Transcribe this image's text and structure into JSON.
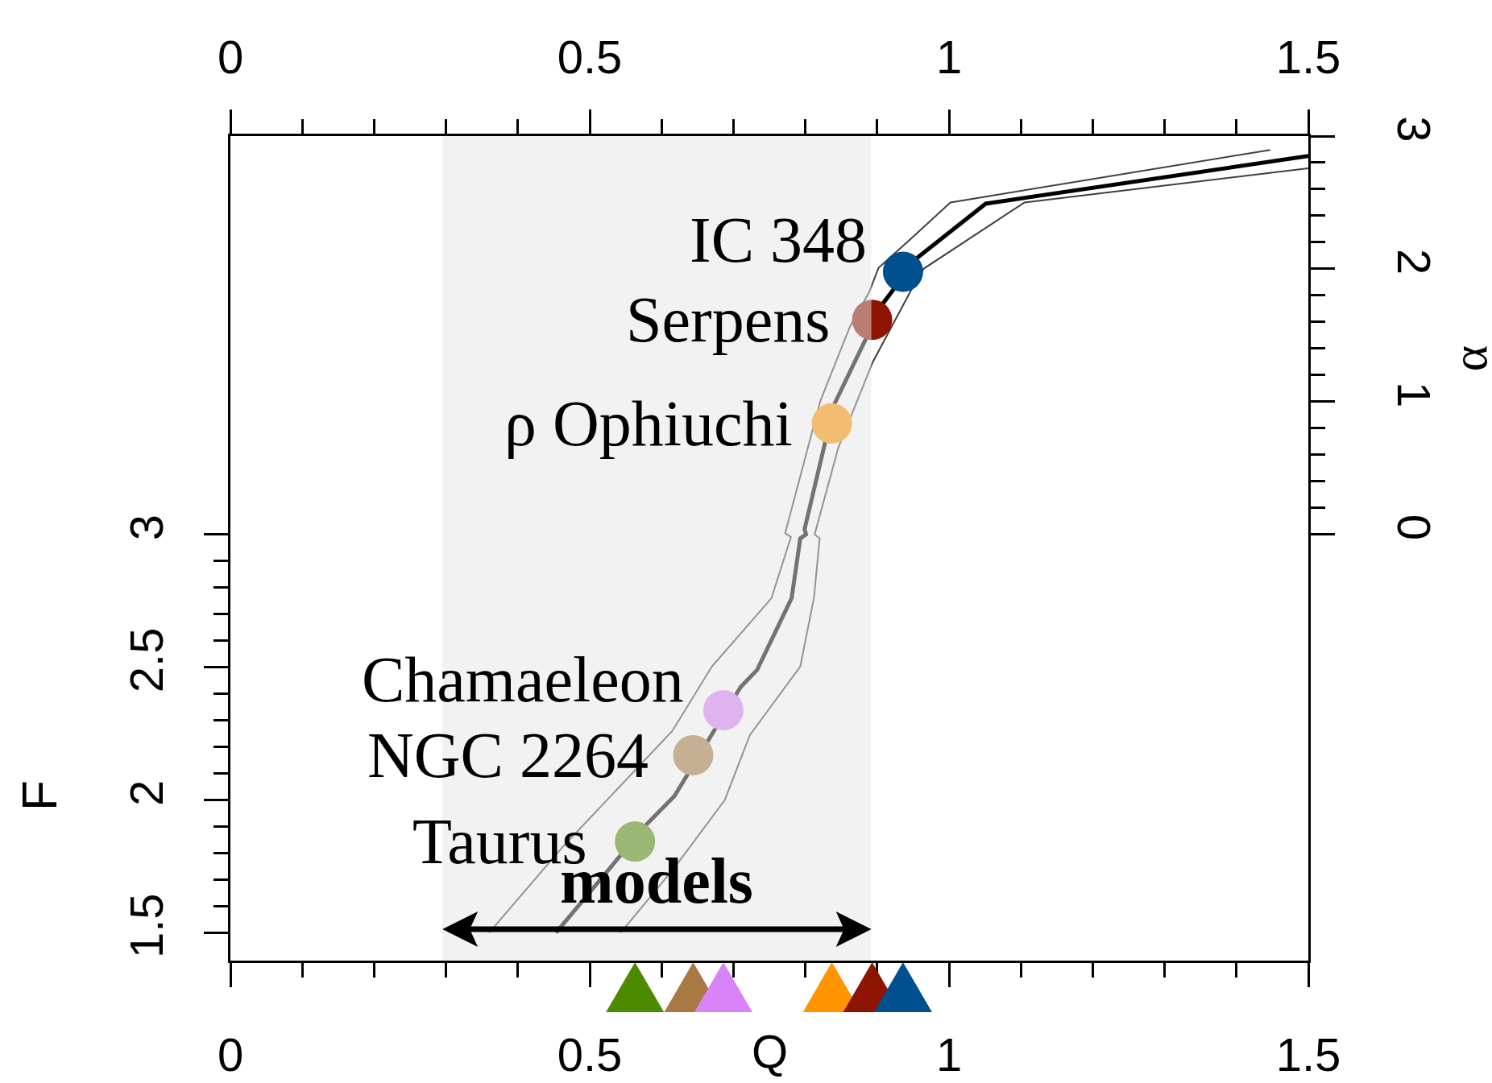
{
  "chart_data": {
    "type": "line",
    "xlabel": "Q",
    "ylabel": "F",
    "y2label": "α",
    "xlim": [
      0,
      1.5
    ],
    "xticks": [
      0,
      0.5,
      1,
      1.5
    ],
    "x2lim": [
      0,
      1.5
    ],
    "x2ticks": [
      0,
      0.5,
      1,
      1.5
    ],
    "ylim": [
      1.395,
      4.5
    ],
    "yticks": [
      1.5,
      2,
      2.5,
      3
    ],
    "y2lim": [
      -3.21,
      3
    ],
    "y2ticks": [
      0,
      1,
      2,
      3
    ],
    "series": [
      {
        "axis": "y2",
        "color": "#404040",
        "x": [
          0.36,
          0.463,
          0.615,
          0.67,
          0.753,
          0.78,
          0.772,
          0.821,
          0.862,
          0.889,
          0.902,
          0.943,
          1.002,
          1.447
        ],
        "values": [
          -3.0,
          -2.35,
          -1.48,
          -0.995,
          -0.48,
          -0.02,
          0.01,
          1.006,
          1.563,
          1.826,
          2.008,
          2.207,
          2.5,
          2.896
        ]
      },
      {
        "axis": "y2",
        "color": "#404040",
        "x": [
          0.543,
          0.618,
          0.688,
          0.723,
          0.793,
          0.812,
          0.82,
          0.813,
          0.846,
          0.894,
          0.946,
          0.965,
          1.105,
          1.5
        ],
        "values": [
          -3.0,
          -2.51,
          -2.0,
          -1.51,
          -0.995,
          -0.48,
          -0.03,
          0.0,
          0.654,
          1.299,
          1.826,
          2.002,
          2.5,
          2.758
        ]
      },
      {
        "axis": "y2",
        "color": "#000000",
        "x": [
          0.453,
          0.578,
          0.618,
          0.71,
          0.733,
          0.781,
          0.793,
          0.801,
          0.799,
          0.84,
          0.908,
          0.956,
          1.051,
          1.5
        ],
        "values": [
          -3.0,
          -2.19,
          -1.97,
          -1.15,
          -1.02,
          -0.48,
          -0.03,
          0.0,
          0.04,
          0.976,
          1.739,
          2.084,
          2.491,
          2.85
        ]
      },
      {
        "type": "scatter",
        "axis": "y2",
        "marker": "circle",
        "x": [
          0.563,
          0.644,
          0.686,
          0.837,
          0.893,
          0.936
        ],
        "values": [
          -2.313,
          -1.663,
          -1.324,
          0.836,
          1.616,
          1.978
        ],
        "colors": [
          "#4e8a00",
          "#a87942",
          "#d883f7",
          "#ff9400",
          "#8e1402",
          "#00508f"
        ]
      }
    ],
    "annotations": [
      "Taurus",
      "NGC 2264",
      "Chamaeleon",
      "ρ Ophiuchi",
      "Serpens",
      "IC 348"
    ],
    "bands": [
      {
        "axis": "x",
        "from": 0.295,
        "to": 0.892,
        "label": "models",
        "color": "#e6e6e6"
      }
    ],
    "grid": false
  }
}
